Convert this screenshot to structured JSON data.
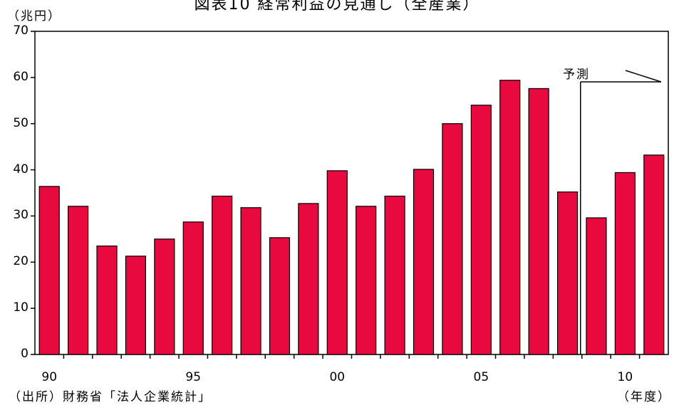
{
  "chart_data": {
    "type": "bar",
    "title": "図表10 経常利益の見通し（全産業）",
    "ylabel": "（兆円）",
    "xlabel": "（年度）",
    "source": "（出所）財務省「法人企業統計」",
    "forecast_label": "予測",
    "ylim": [
      0,
      70
    ],
    "yticks": [
      0,
      10,
      20,
      30,
      40,
      50,
      60,
      70
    ],
    "x_tick_labels": [
      {
        "label": "90",
        "index": 0
      },
      {
        "label": "95",
        "index": 5
      },
      {
        "label": "00",
        "index": 10
      },
      {
        "label": "05",
        "index": 15
      },
      {
        "label": "10",
        "index": 20
      }
    ],
    "categories": [
      "1990",
      "1991",
      "1992",
      "1993",
      "1994",
      "1995",
      "1996",
      "1997",
      "1998",
      "1999",
      "2000",
      "2001",
      "2002",
      "2003",
      "2004",
      "2005",
      "2006",
      "2007",
      "2008",
      "2009",
      "2010",
      "2011"
    ],
    "values": [
      36.4,
      32.1,
      23.5,
      21.3,
      25.0,
      28.7,
      34.3,
      31.8,
      25.3,
      32.7,
      39.8,
      32.1,
      34.3,
      40.1,
      50.0,
      54.0,
      59.4,
      57.6,
      35.2,
      29.6,
      39.4,
      43.2
    ],
    "forecast_start_index": 19,
    "grid": false,
    "colors": {
      "bar_fill": "#e8093f",
      "bar_stroke": "#000000",
      "axis": "#000000"
    }
  }
}
